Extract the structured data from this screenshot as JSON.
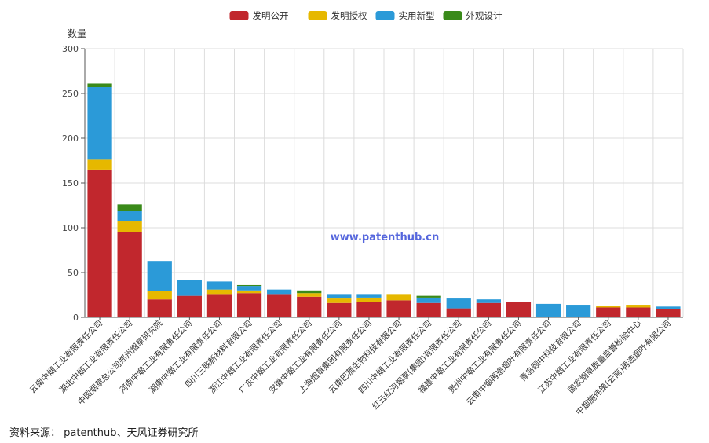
{
  "chart_data": {
    "type": "bar",
    "stacked": true,
    "ylabel": "数量",
    "ylim": [
      0,
      300
    ],
    "yticks": [
      0,
      50,
      100,
      150,
      200,
      250,
      300
    ],
    "grid": true,
    "legend_position": "top-center",
    "watermark": "www.patenthub.cn",
    "categories": [
      "云南中烟工业有限责任公司",
      "湖北中烟工业有限责任公司",
      "中国烟草总公司郑州烟草研究院",
      "河南中烟工业有限责任公司",
      "湖南中烟工业有限责任公司",
      "四川三联新材料有限公司",
      "浙江中烟工业有限责任公司",
      "广东中烟工业有限责任公司",
      "安徽中烟工业有限责任公司",
      "上海烟草集团有限责任公司",
      "云南巴菰生物科技有限公司",
      "四川中烟工业有限责任公司",
      "红云红河烟草(集团)有限责任公司",
      "福建中烟工业有限责任公司",
      "贵州中烟工业有限责任公司",
      "云南中烟再造烟叶有限责任公司",
      "青岛颐中科技有限公司",
      "江苏中烟工业有限责任公司",
      "国家烟草质量监督检验中心",
      "中烟施伟策(云南)再造烟叶有限公司"
    ],
    "series": [
      {
        "name": "发明公开",
        "color": "#c1272d",
        "values": [
          165,
          95,
          20,
          24,
          26,
          27,
          26,
          23,
          16,
          17,
          19,
          16,
          10,
          16,
          17,
          0,
          0,
          11,
          11,
          9
        ]
      },
      {
        "name": "发明授权",
        "color": "#e6b800",
        "values": [
          11,
          12,
          9,
          0,
          5,
          3,
          0,
          4,
          5,
          5,
          7,
          0,
          0,
          0,
          0,
          0,
          0,
          2,
          3,
          0
        ]
      },
      {
        "name": "实用新型",
        "color": "#2b9ad8",
        "values": [
          81,
          12,
          34,
          18,
          9,
          5,
          5,
          0,
          5,
          4,
          0,
          6,
          11,
          4,
          0,
          15,
          14,
          0,
          0,
          3
        ]
      },
      {
        "name": "外观设计",
        "color": "#3a8a1a",
        "values": [
          4,
          7,
          0,
          0,
          0,
          1,
          0,
          3,
          0,
          0,
          0,
          2,
          0,
          0,
          0,
          0,
          0,
          0,
          0,
          0
        ]
      }
    ]
  },
  "source_text": "资料来源： patenthub、天风证券研究所"
}
